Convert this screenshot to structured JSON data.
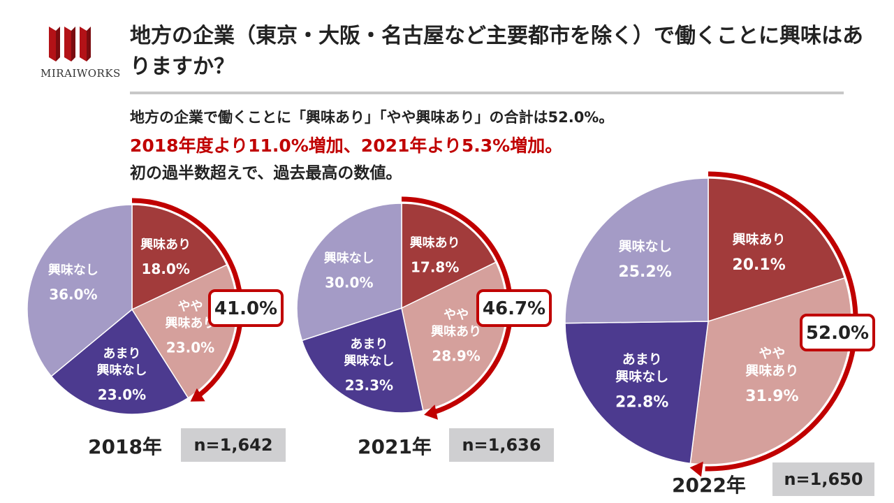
{
  "brand": {
    "name": "MiraiWorks",
    "logo_text": "MIRAIWORKS",
    "color": "#c00000"
  },
  "header": {
    "title": "地方の企業（東京・大阪・名古屋など主要都市を除く）で働くことに興味はありますか？",
    "subtitle_line1": "地方の企業で働くことに「興味あり」「やや興味あり」の合計は52.0%。",
    "subtitle_line2": "2018年度より11.0%増加、2021年より5.3%増加。",
    "subtitle_line3": "初の過半数超えで、過去最高の数値。"
  },
  "colors": {
    "interested": "#a23b3b",
    "somewhat_interested": "#d5a09c",
    "not_very_interested": "#4c3a8f",
    "not_interested": "#a49bc6",
    "arrow": "#c00000"
  },
  "chart_data": [
    {
      "type": "pie",
      "year_label": "2018年",
      "n_label": "n=1,642",
      "total_label": "41.0%",
      "slices": [
        {
          "name": "興味あり",
          "lines": [
            "興味あり"
          ],
          "value": 18.0,
          "value_label": "18.0%"
        },
        {
          "name": "やや興味あり",
          "lines": [
            "やや",
            "興味あり"
          ],
          "value": 23.0,
          "value_label": "23.0%"
        },
        {
          "name": "あまり興味なし",
          "lines": [
            "あまり",
            "興味なし"
          ],
          "value": 23.0,
          "value_label": "23.0%"
        },
        {
          "name": "興味なし",
          "lines": [
            "興味なし"
          ],
          "value": 36.0,
          "value_label": "36.0%"
        }
      ]
    },
    {
      "type": "pie",
      "year_label": "2021年",
      "n_label": "n=1,636",
      "total_label": "46.7%",
      "slices": [
        {
          "name": "興味あり",
          "lines": [
            "興味あり"
          ],
          "value": 17.8,
          "value_label": "17.8%"
        },
        {
          "name": "やや興味あり",
          "lines": [
            "やや",
            "興味あり"
          ],
          "value": 28.9,
          "value_label": "28.9%"
        },
        {
          "name": "あまり興味なし",
          "lines": [
            "あまり",
            "興味なし"
          ],
          "value": 23.3,
          "value_label": "23.3%"
        },
        {
          "name": "興味なし",
          "lines": [
            "興味なし"
          ],
          "value": 30.0,
          "value_label": "30.0%"
        }
      ]
    },
    {
      "type": "pie",
      "year_label": "2022年",
      "n_label": "n=1,650",
      "total_label": "52.0%",
      "slices": [
        {
          "name": "興味あり",
          "lines": [
            "興味あり"
          ],
          "value": 20.1,
          "value_label": "20.1%"
        },
        {
          "name": "やや興味あり",
          "lines": [
            "やや",
            "興味あり"
          ],
          "value": 31.9,
          "value_label": "31.9%"
        },
        {
          "name": "あまり興味なし",
          "lines": [
            "あまり",
            "興味なし"
          ],
          "value": 22.8,
          "value_label": "22.8%"
        },
        {
          "name": "興味なし",
          "lines": [
            "興味なし"
          ],
          "value": 25.2,
          "value_label": "25.2%"
        }
      ]
    }
  ]
}
